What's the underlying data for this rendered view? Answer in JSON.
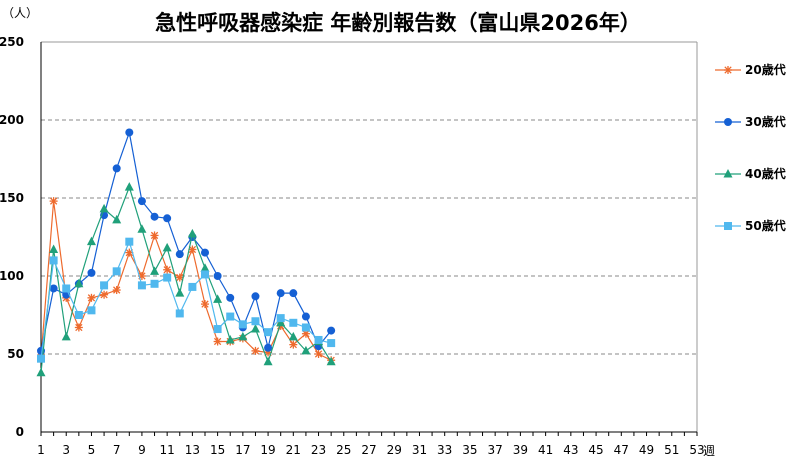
{
  "chart_data": {
    "type": "line",
    "title": "急性呼吸器感染症 年齢別報告数（富山県2026年）",
    "ylabel": "（人）",
    "xlabel": "週",
    "xlim": [
      1,
      53
    ],
    "ylim": [
      0,
      250
    ],
    "yticks": [
      0,
      50,
      100,
      150,
      200,
      250
    ],
    "xticks": [
      1,
      3,
      5,
      7,
      9,
      11,
      13,
      15,
      17,
      19,
      21,
      23,
      25,
      27,
      29,
      31,
      33,
      35,
      37,
      39,
      41,
      43,
      45,
      47,
      49,
      51,
      53
    ],
    "grid": "horizontal-dashed",
    "legend_position": "right",
    "x": [
      1,
      2,
      3,
      4,
      5,
      6,
      7,
      8,
      9,
      10,
      11,
      12,
      13,
      14,
      15,
      16,
      17,
      18,
      19,
      20,
      21,
      22,
      23,
      24
    ],
    "series": [
      {
        "name": "20歳代",
        "color": "#ee6a2d",
        "marker": "asterisk",
        "values": [
          48,
          148,
          86,
          67,
          86,
          88,
          91,
          115,
          100,
          126,
          104,
          99,
          117,
          82,
          58,
          58,
          60,
          52,
          51,
          68,
          56,
          63,
          50,
          46
        ]
      },
      {
        "name": "30歳代",
        "color": "#1560d4",
        "marker": "circle",
        "values": [
          52,
          92,
          88,
          95,
          102,
          139,
          169,
          192,
          148,
          138,
          137,
          114,
          125,
          115,
          100,
          86,
          67,
          87,
          54,
          89,
          89,
          74,
          55,
          65
        ]
      },
      {
        "name": "40歳代",
        "color": "#20a07a",
        "marker": "triangle",
        "values": [
          38,
          117,
          61,
          95,
          122,
          143,
          136,
          157,
          130,
          103,
          118,
          89,
          127,
          105,
          85,
          59,
          61,
          66,
          45,
          70,
          61,
          52,
          58,
          45
        ]
      },
      {
        "name": "50歳代",
        "color": "#50b8ee",
        "marker": "square",
        "values": [
          47,
          110,
          92,
          75,
          78,
          94,
          103,
          122,
          94,
          95,
          99,
          76,
          93,
          101,
          66,
          74,
          69,
          71,
          64,
          73,
          70,
          67,
          59,
          57
        ]
      }
    ]
  }
}
